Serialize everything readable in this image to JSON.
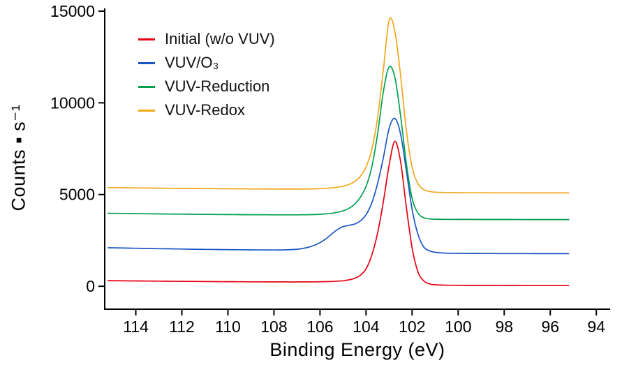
{
  "chart_data": {
    "type": "line",
    "title": "",
    "xlabel": "Binding Energy (eV)",
    "ylabel": "Counts ▪ s⁻¹",
    "grid": false,
    "legend_position": "upper-left",
    "x_axis": {
      "min": 93.4,
      "max": 115.35,
      "reversed": true,
      "ticks": [
        114,
        112,
        110,
        108,
        106,
        104,
        102,
        100,
        98,
        96,
        94
      ]
    },
    "y_axis": {
      "min": -1250,
      "max": 15150,
      "ticks": [
        0,
        5000,
        10000,
        15000
      ]
    },
    "x": [
      115.2,
      114.5,
      114,
      113.5,
      113,
      112.5,
      112,
      111.5,
      111,
      110.5,
      110,
      109.5,
      109,
      108.5,
      108,
      107.5,
      107,
      106.75,
      106.5,
      106.25,
      106,
      105.75,
      105.5,
      105.25,
      105,
      104.75,
      104.5,
      104.25,
      104,
      103.75,
      103.5,
      103.25,
      103,
      102.75,
      102.5,
      102.25,
      102,
      101.75,
      101.5,
      101.25,
      101,
      100.5,
      100,
      99.5,
      99,
      98.5,
      98,
      97.5,
      97,
      96.5,
      96,
      95.5,
      95.2
    ],
    "series": [
      {
        "name": "Initial (w/o VUV)",
        "color": "#e60012",
        "values": [
          305,
          296,
          291,
          285,
          279,
          273,
          268,
          263,
          258,
          253,
          249,
          245,
          242,
          240,
          238,
          236,
          236,
          237,
          239,
          242,
          246,
          252,
          262,
          278,
          300,
          350,
          430,
          600,
          950,
          1700,
          2900,
          4600,
          6600,
          7900,
          6800,
          4300,
          2100,
          800,
          300,
          130,
          80,
          60,
          52,
          48,
          45,
          43,
          41,
          39,
          38,
          37,
          36,
          35,
          35
        ]
      },
      {
        "name": "VUV/O₃",
        "color": "#1a56c4",
        "values": [
          2100,
          2085,
          2072,
          2060,
          2050,
          2040,
          2030,
          2020,
          2012,
          2004,
          1997,
          1991,
          1986,
          1981,
          1978,
          1985,
          2020,
          2060,
          2130,
          2230,
          2380,
          2580,
          2840,
          3080,
          3250,
          3320,
          3390,
          3560,
          3900,
          4550,
          5600,
          7000,
          8600,
          9150,
          8300,
          6300,
          4200,
          2850,
          2150,
          1930,
          1850,
          1805,
          1795,
          1790,
          1787,
          1785,
          1783,
          1782,
          1781,
          1780,
          1780,
          1779,
          1779
        ]
      },
      {
        "name": "VUV-Reduction",
        "color": "#00a04d",
        "values": [
          3980,
          3970,
          3960,
          3952,
          3945,
          3938,
          3932,
          3926,
          3920,
          3915,
          3910,
          3905,
          3901,
          3898,
          3896,
          3895,
          3896,
          3898,
          3902,
          3910,
          3924,
          3946,
          3980,
          4030,
          4110,
          4240,
          4470,
          4850,
          5450,
          6500,
          8300,
          10600,
          11950,
          11400,
          9300,
          6700,
          4800,
          4000,
          3740,
          3672,
          3655,
          3648,
          3645,
          3643,
          3641,
          3640,
          3639,
          3638,
          3637,
          3636,
          3636,
          3635,
          3635
        ]
      },
      {
        "name": "VUV-Redox",
        "color": "#f2a71b",
        "values": [
          5380,
          5370,
          5362,
          5355,
          5348,
          5342,
          5336,
          5330,
          5325,
          5320,
          5316,
          5312,
          5308,
          5305,
          5302,
          5300,
          5300,
          5302,
          5306,
          5312,
          5322,
          5340,
          5365,
          5400,
          5455,
          5545,
          5705,
          5990,
          6500,
          7450,
          9200,
          11800,
          14500,
          13900,
          11500,
          8500,
          6500,
          5600,
          5280,
          5170,
          5130,
          5110,
          5102,
          5098,
          5096,
          5094,
          5093,
          5092,
          5091,
          5090,
          5090,
          5089,
          5089
        ]
      }
    ]
  }
}
